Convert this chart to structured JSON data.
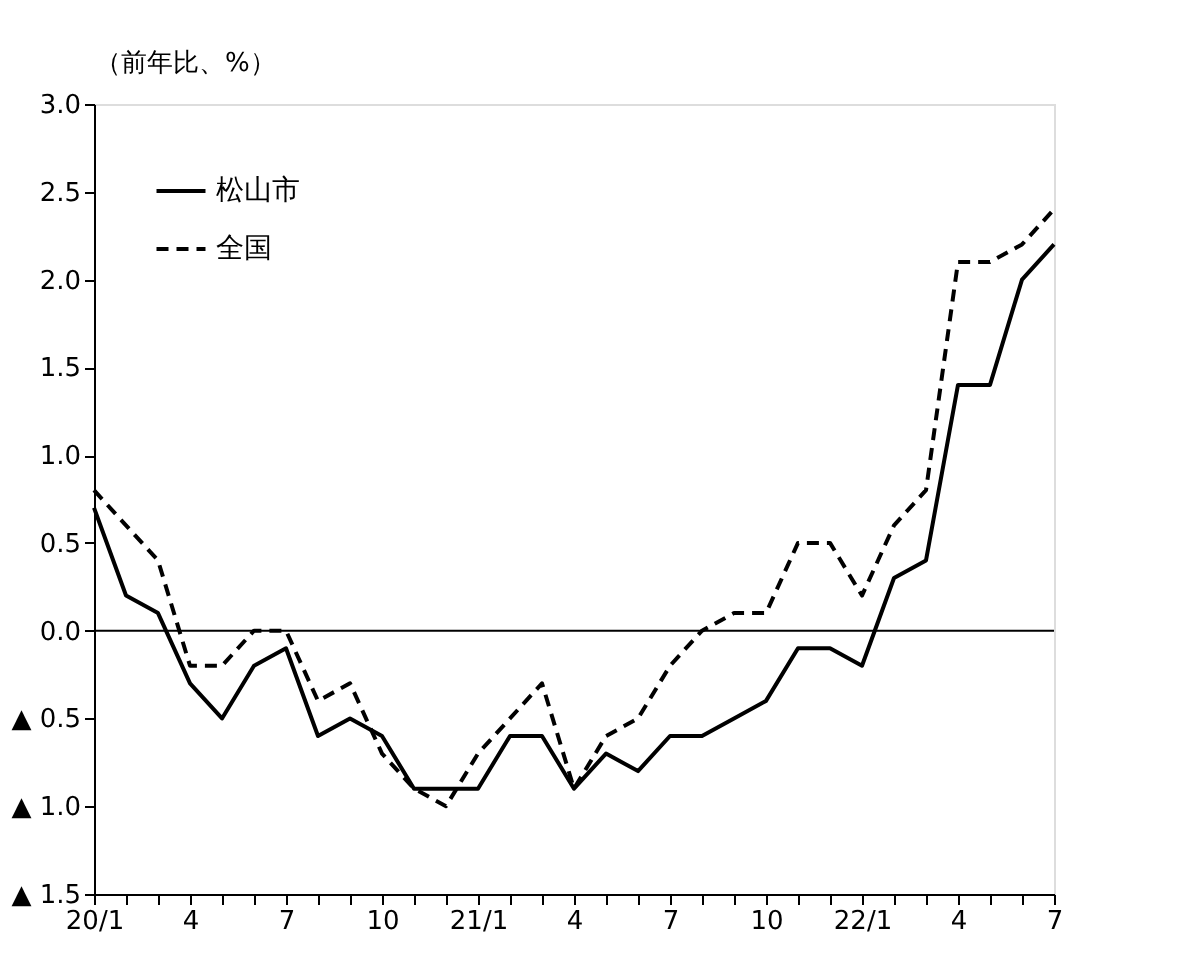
{
  "chart_data": {
    "type": "line",
    "ylabel": "（前年比、%）",
    "categories": [
      "20/1",
      null,
      null,
      "4",
      null,
      null,
      "7",
      null,
      null,
      "10",
      null,
      null,
      "21/1",
      null,
      null,
      "4",
      null,
      null,
      "7",
      null,
      null,
      "10",
      null,
      null,
      "22/1",
      null,
      null,
      "4",
      null,
      null,
      "7"
    ],
    "series": [
      {
        "name": "松山市",
        "color": "#000000",
        "line_style": "solid",
        "values": [
          0.7,
          0.2,
          0.1,
          -0.3,
          -0.5,
          -0.2,
          -0.1,
          -0.6,
          -0.5,
          -0.6,
          -0.9,
          -0.9,
          -0.9,
          -0.6,
          -0.6,
          -0.9,
          -0.7,
          -0.8,
          -0.6,
          -0.6,
          -0.5,
          -0.4,
          -0.1,
          -0.1,
          -0.2,
          0.3,
          0.4,
          1.4,
          1.4,
          2.0,
          2.2
        ]
      },
      {
        "name": "全国",
        "color": "#000000",
        "line_style": "dashed",
        "values": [
          0.8,
          0.6,
          0.4,
          -0.2,
          -0.2,
          0.0,
          0.0,
          -0.4,
          -0.3,
          -0.7,
          -0.9,
          -1.0,
          -0.7,
          -0.5,
          -0.3,
          -0.9,
          -0.6,
          -0.5,
          -0.2,
          0.0,
          0.1,
          0.1,
          0.5,
          0.5,
          0.2,
          0.6,
          0.8,
          2.1,
          2.1,
          2.2,
          2.4
        ]
      }
    ],
    "ylim": [
      -1.5,
      3.0
    ],
    "yticks": [
      {
        "value": -1.5,
        "label": "▲ 1.5"
      },
      {
        "value": -1.0,
        "label": "▲ 1.0"
      },
      {
        "value": -0.5,
        "label": "▲ 0.5"
      },
      {
        "value": 0,
        "label": "0.0"
      },
      {
        "value": 0.5,
        "label": "0.5"
      },
      {
        "value": 1.0,
        "label": "1.0"
      },
      {
        "value": 1.5,
        "label": "1.5"
      },
      {
        "value": 2.0,
        "label": "2.0"
      },
      {
        "value": 2.5,
        "label": "2.5"
      },
      {
        "value": 3.0,
        "label": "3.0"
      }
    ],
    "ref_lines": [
      {
        "axis": "y",
        "value": 0,
        "color": "#000000"
      }
    ],
    "grid": false,
    "legend": "top left",
    "marker": "none"
  }
}
